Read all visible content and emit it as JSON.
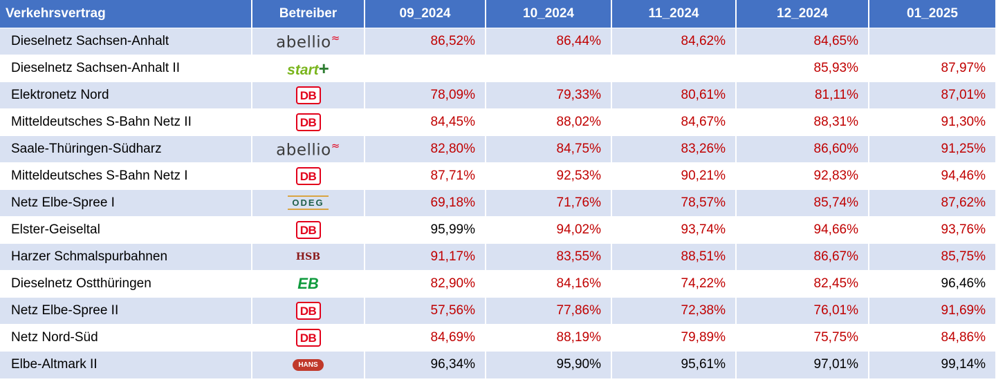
{
  "header": [
    "Verkehrsvertrag",
    "Betreiber",
    "09_2024",
    "10_2024",
    "11_2024",
    "12_2024",
    "01_2025"
  ],
  "rows": [
    {
      "name": "Dieselnetz Sachsen-Anhalt",
      "operator": "abellio",
      "values": [
        "86,52%",
        "86,44%",
        "84,62%",
        "84,65%",
        ""
      ],
      "colors": [
        "red",
        "red",
        "red",
        "red",
        "red"
      ]
    },
    {
      "name": "Dieselnetz Sachsen-Anhalt II",
      "operator": "start",
      "values": [
        "",
        "",
        "",
        "85,93%",
        "87,97%"
      ],
      "colors": [
        "red",
        "red",
        "red",
        "red",
        "red"
      ]
    },
    {
      "name": "Elektronetz Nord",
      "operator": "DB",
      "values": [
        "78,09%",
        "79,33%",
        "80,61%",
        "81,11%",
        "87,01%"
      ],
      "colors": [
        "red",
        "red",
        "red",
        "red",
        "red"
      ]
    },
    {
      "name": "Mitteldeutsches S-Bahn Netz II",
      "operator": "DB",
      "values": [
        "84,45%",
        "88,02%",
        "84,67%",
        "88,31%",
        "91,30%"
      ],
      "colors": [
        "red",
        "red",
        "red",
        "red",
        "red"
      ]
    },
    {
      "name": "Saale-Thüringen-Südharz",
      "operator": "abellio",
      "values": [
        "82,80%",
        "84,75%",
        "83,26%",
        "86,60%",
        "91,25%"
      ],
      "colors": [
        "red",
        "red",
        "red",
        "red",
        "red"
      ]
    },
    {
      "name": "Mitteldeutsches S-Bahn Netz I",
      "operator": "DB",
      "values": [
        "87,71%",
        "92,53%",
        "90,21%",
        "92,83%",
        "94,46%"
      ],
      "colors": [
        "red",
        "red",
        "red",
        "red",
        "red"
      ]
    },
    {
      "name": "Netz Elbe-Spree I",
      "operator": "ODEG",
      "values": [
        "69,18%",
        "71,76%",
        "78,57%",
        "85,74%",
        "87,62%"
      ],
      "colors": [
        "red",
        "red",
        "red",
        "red",
        "red"
      ]
    },
    {
      "name": "Elster-Geiseltal",
      "operator": "DB",
      "values": [
        "95,99%",
        "94,02%",
        "93,74%",
        "94,66%",
        "93,76%"
      ],
      "colors": [
        "black",
        "red",
        "red",
        "red",
        "red"
      ]
    },
    {
      "name": "Harzer Schmalspurbahnen",
      "operator": "HSB",
      "values": [
        "91,17%",
        "83,55%",
        "88,51%",
        "86,67%",
        "85,75%"
      ],
      "colors": [
        "red",
        "red",
        "red",
        "red",
        "red"
      ]
    },
    {
      "name": "Dieselnetz Ostthüringen",
      "operator": "EB",
      "values": [
        "82,90%",
        "84,16%",
        "74,22%",
        "82,45%",
        "96,46%"
      ],
      "colors": [
        "red",
        "red",
        "red",
        "red",
        "black"
      ]
    },
    {
      "name": "Netz Elbe-Spree II",
      "operator": "DB",
      "values": [
        "57,56%",
        "77,86%",
        "72,38%",
        "76,01%",
        "91,69%"
      ],
      "colors": [
        "red",
        "red",
        "red",
        "red",
        "red"
      ]
    },
    {
      "name": "Netz Nord-Süd",
      "operator": "DB",
      "values": [
        "84,69%",
        "88,19%",
        "79,89%",
        "75,75%",
        "84,86%"
      ],
      "colors": [
        "red",
        "red",
        "red",
        "red",
        "red"
      ]
    },
    {
      "name": "Elbe-Altmark II",
      "operator": "HANS",
      "values": [
        "96,34%",
        "95,90%",
        "95,61%",
        "97,01%",
        "99,14%"
      ],
      "colors": [
        "black",
        "black",
        "black",
        "black",
        "black"
      ]
    }
  ],
  "logos": {
    "DB": "DB",
    "abellio": "abellio",
    "start": "start",
    "ODEG": "ODEG",
    "HSB": "HSB",
    "EB": "EB",
    "HANS": "HANS"
  },
  "colors": {
    "header_bg": "#4472c4",
    "band": "#d9e1f2",
    "red": "#c00000"
  }
}
